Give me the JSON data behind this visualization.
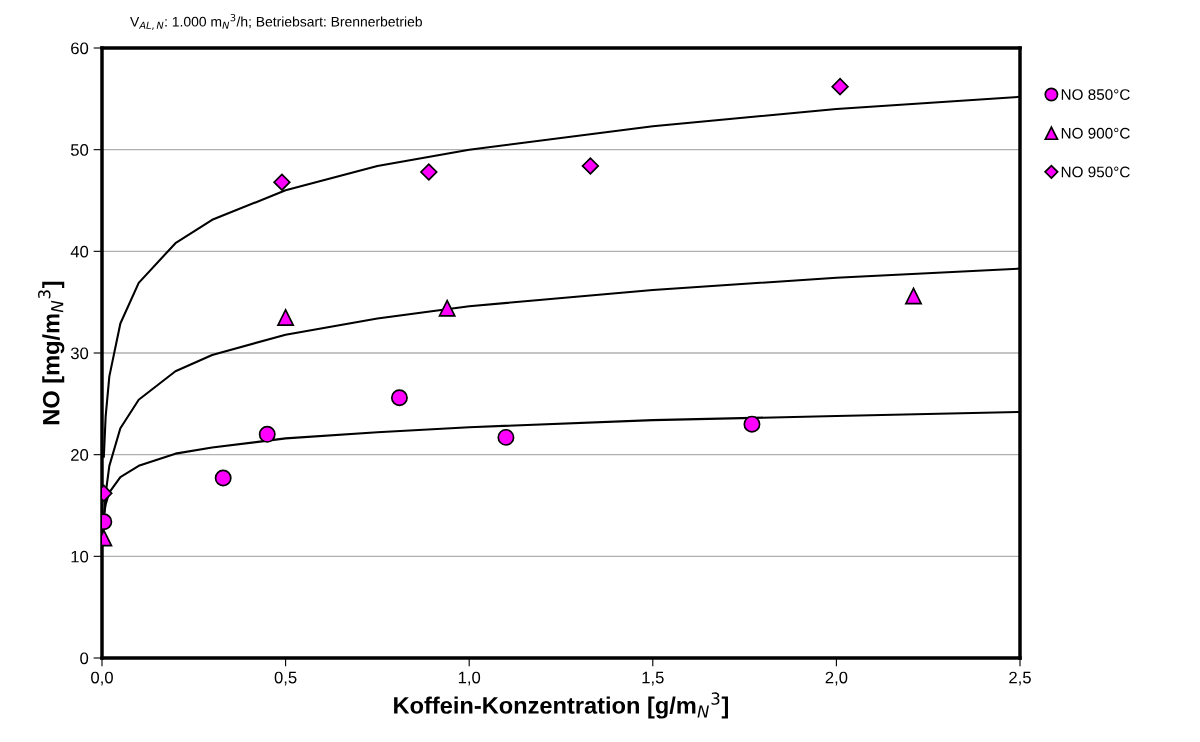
{
  "chart_data": {
    "type": "scatter",
    "subtitle": "V$_{AL,N}$: 1.000 m$_{N}$$^{3}$/h; Betriebsart: Brennerbetrieb",
    "xlabel": "Koffein-Konzentration [g/m$_{N}$$^{3}$]",
    "ylabel": "NO [mg/m$_{N}$$^{3}$]",
    "xlim": [
      0,
      2.5
    ],
    "xticks": [
      {
        "value": 0,
        "label": "0,0"
      },
      {
        "value": 0.5,
        "label": "0,5"
      },
      {
        "value": 1.0,
        "label": "1,0"
      },
      {
        "value": 1.5,
        "label": "1,5"
      },
      {
        "value": 2.0,
        "label": "2,0"
      },
      {
        "value": 2.5,
        "label": "2,5"
      }
    ],
    "ylim": [
      0,
      60
    ],
    "yticks": [
      0,
      10,
      20,
      30,
      40,
      50,
      60
    ],
    "grid": "y",
    "legend": "top right",
    "series": [
      {
        "name": "NO 850°C",
        "color": "#ff00ff",
        "marker": "circle",
        "x": [
          0.005,
          0.33,
          0.45,
          0.81,
          1.1,
          1.77
        ],
        "values": [
          13.4,
          17.7,
          22.0,
          25.6,
          21.7,
          23.0
        ]
      },
      {
        "name": "NO 900°C",
        "color": "#ff00ff",
        "marker": "triangle",
        "x": [
          0.005,
          0.5,
          0.94,
          2.21
        ],
        "values": [
          11.8,
          33.5,
          34.4,
          35.6
        ]
      },
      {
        "name": "NO 950°C",
        "color": "#ff00ff",
        "marker": "diamond",
        "x": [
          0.005,
          0.49,
          0.89,
          1.33,
          2.01
        ],
        "values": [
          16.2,
          46.8,
          47.8,
          48.4,
          56.2
        ]
      },
      {
        "type": "line",
        "color": "#000000",
        "marker": "none",
        "x": [
          0.005,
          0.01,
          0.02,
          0.05,
          0.1,
          0.2,
          0.3,
          0.5,
          0.75,
          1.0,
          1.5,
          2.0,
          2.5
        ],
        "values": [
          14.0,
          15.1,
          16.3,
          17.8,
          18.9,
          20.1,
          20.7,
          21.6,
          22.2,
          22.7,
          23.4,
          23.8,
          24.2
        ]
      },
      {
        "type": "line",
        "color": "#000000",
        "marker": "none",
        "x": [
          0.005,
          0.01,
          0.02,
          0.05,
          0.1,
          0.2,
          0.3,
          0.5,
          0.75,
          1.0,
          1.5,
          2.0,
          2.5
        ],
        "values": [
          13.4,
          16.2,
          18.9,
          22.6,
          25.4,
          28.2,
          29.8,
          31.8,
          33.4,
          34.6,
          36.2,
          37.4,
          38.3
        ]
      },
      {
        "type": "line",
        "color": "#000000",
        "marker": "none",
        "x": [
          0.005,
          0.01,
          0.02,
          0.05,
          0.1,
          0.2,
          0.3,
          0.5,
          0.75,
          1.0,
          1.5,
          2.0,
          2.5
        ],
        "values": [
          19.8,
          23.8,
          27.7,
          32.9,
          36.9,
          40.8,
          43.1,
          46.0,
          48.4,
          50.0,
          52.3,
          54.0,
          55.2
        ]
      }
    ]
  }
}
